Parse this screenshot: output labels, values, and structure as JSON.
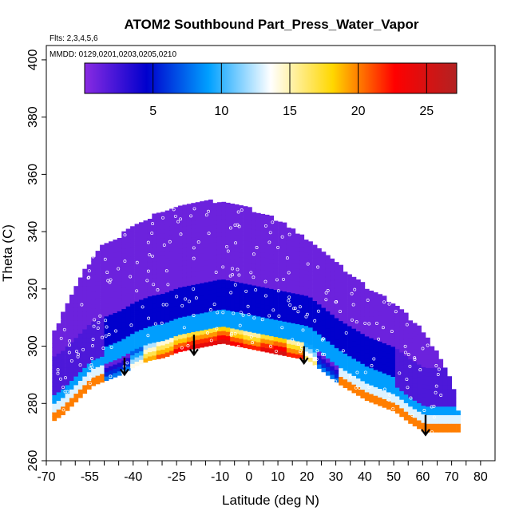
{
  "chart_data": {
    "type": "heatmap",
    "title": "ATOM2 Southbound Part_Press_Water_Vapor",
    "flights_label": "Flts: 2,3,4,5,6",
    "dates_label": "MMDD: 0129,0201,0203,0205,0210",
    "xlabel": "Latitude (deg N)",
    "ylabel": "Theta (C)",
    "xlim": [
      -70,
      85
    ],
    "ylim": [
      260,
      405
    ],
    "x_ticks_labeled": [
      -70,
      -55,
      -40,
      -25,
      -10,
      0,
      10,
      20,
      30,
      40,
      50,
      60,
      70,
      80
    ],
    "x_tick_labels": [
      "-70",
      "-55",
      "-40",
      "-25",
      "-10",
      "0",
      "10",
      "20",
      "30",
      "40",
      "50",
      "60",
      "70",
      "80"
    ],
    "x_ticks_minor": [
      -65,
      -60,
      -50,
      -45,
      -35,
      -30,
      -20,
      -15,
      -5,
      5,
      15,
      25,
      35,
      45,
      55,
      65,
      75
    ],
    "y_ticks": [
      260,
      280,
      300,
      320,
      340,
      360,
      380,
      400
    ],
    "y_tick_labels": [
      "260",
      "280",
      "300",
      "320",
      "340",
      "360",
      "380",
      "400"
    ],
    "colorbar": {
      "range": [
        0,
        27.2
      ],
      "ticks": [
        5,
        10,
        15,
        20,
        25
      ],
      "tick_labels": [
        "5",
        "10",
        "15",
        "20",
        "25"
      ],
      "colors": [
        "#8a2be2",
        "#0000cd",
        "#00a0ff",
        "#ffffff",
        "#ffd700",
        "#ff0000",
        "#b22222"
      ]
    },
    "top_boundary": [
      [
        -68,
        305
      ],
      [
        -63,
        315
      ],
      [
        -58,
        325
      ],
      [
        -53,
        333
      ],
      [
        -45,
        338
      ],
      [
        -38,
        343
      ],
      [
        -30,
        347
      ],
      [
        -20,
        349
      ],
      [
        -12,
        350
      ],
      [
        -5,
        349
      ],
      [
        0,
        347
      ],
      [
        5,
        345
      ],
      [
        10,
        343
      ],
      [
        15,
        340
      ],
      [
        20,
        336
      ],
      [
        25,
        332
      ],
      [
        30,
        328
      ],
      [
        35,
        324
      ],
      [
        40,
        320
      ],
      [
        45,
        317
      ],
      [
        50,
        314
      ],
      [
        55,
        309
      ],
      [
        60,
        304
      ],
      [
        65,
        296
      ],
      [
        70,
        285
      ],
      [
        72,
        274
      ]
    ],
    "bottom_boundary": [
      [
        -68,
        274
      ],
      [
        -65,
        276
      ],
      [
        -60,
        281
      ],
      [
        -55,
        286
      ],
      [
        -50,
        288
      ],
      [
        -45,
        290
      ],
      [
        -40,
        293
      ],
      [
        -35,
        295
      ],
      [
        -30,
        296
      ],
      [
        -25,
        298
      ],
      [
        -20,
        299
      ],
      [
        -15,
        300
      ],
      [
        -10,
        301
      ],
      [
        -5,
        300
      ],
      [
        0,
        299
      ],
      [
        5,
        298
      ],
      [
        10,
        297
      ],
      [
        15,
        296
      ],
      [
        20,
        295
      ],
      [
        25,
        291
      ],
      [
        30,
        287
      ],
      [
        35,
        284
      ],
      [
        40,
        281
      ],
      [
        45,
        279
      ],
      [
        50,
        277
      ],
      [
        55,
        273
      ],
      [
        60,
        270
      ],
      [
        65,
        270
      ],
      [
        72,
        270
      ]
    ],
    "moist_band": [
      [
        -45,
        289,
        292,
        8
      ],
      [
        -40,
        292,
        296,
        14
      ],
      [
        -35,
        295,
        299,
        19
      ],
      [
        -30,
        296,
        301,
        21
      ],
      [
        -25,
        298,
        302,
        23
      ],
      [
        -20,
        299,
        303,
        24
      ],
      [
        -15,
        300,
        304,
        24
      ],
      [
        -10,
        301,
        305,
        25
      ],
      [
        -5,
        300,
        303,
        23
      ],
      [
        0,
        299,
        302,
        22
      ],
      [
        5,
        298,
        301,
        24
      ],
      [
        10,
        297,
        300,
        25
      ],
      [
        15,
        296,
        299,
        22
      ],
      [
        20,
        295,
        298,
        16
      ],
      [
        25,
        291,
        294,
        8
      ]
    ],
    "arrows": [
      [
        -43,
        296,
        290
      ],
      [
        -19,
        304,
        297
      ],
      [
        19,
        300,
        294
      ],
      [
        61,
        276,
        269
      ]
    ]
  }
}
